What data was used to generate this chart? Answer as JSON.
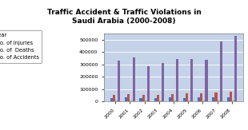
{
  "title": "Traffic Accident & Traffic Violations in\nSaudi Arabia (2000-2008)",
  "years": [
    "2000",
    "2001",
    "2002",
    "2003",
    "2004",
    "2005",
    "2006",
    "2007",
    "2008"
  ],
  "year_vals": [
    30000,
    32000,
    28000,
    30000,
    32000,
    30000,
    31000,
    32000,
    34000
  ],
  "injuries": [
    55000,
    58000,
    52000,
    55000,
    60000,
    65000,
    68000,
    72000,
    80000
  ],
  "deaths": [
    7000,
    7500,
    6500,
    7000,
    7500,
    8000,
    8500,
    9000,
    9500
  ],
  "accidents": [
    330000,
    360000,
    285000,
    315000,
    345000,
    345000,
    340000,
    490000,
    530000
  ],
  "colors": {
    "year": "#4472C4",
    "injuries": "#C0504D",
    "deaths": "#9BBB59",
    "accidents": "#8064A2"
  },
  "legend_labels": [
    "Year",
    "No. of Injuries",
    "No. of  Deaths",
    "No. of Accidents"
  ],
  "ylim": [
    0,
    550000
  ],
  "yticks": [
    0,
    100000,
    200000,
    300000,
    400000,
    500000
  ],
  "plot_bg": "#C5D3E8",
  "title_fontsize": 6.5,
  "tick_fontsize": 4.5,
  "legend_fontsize": 4.8
}
